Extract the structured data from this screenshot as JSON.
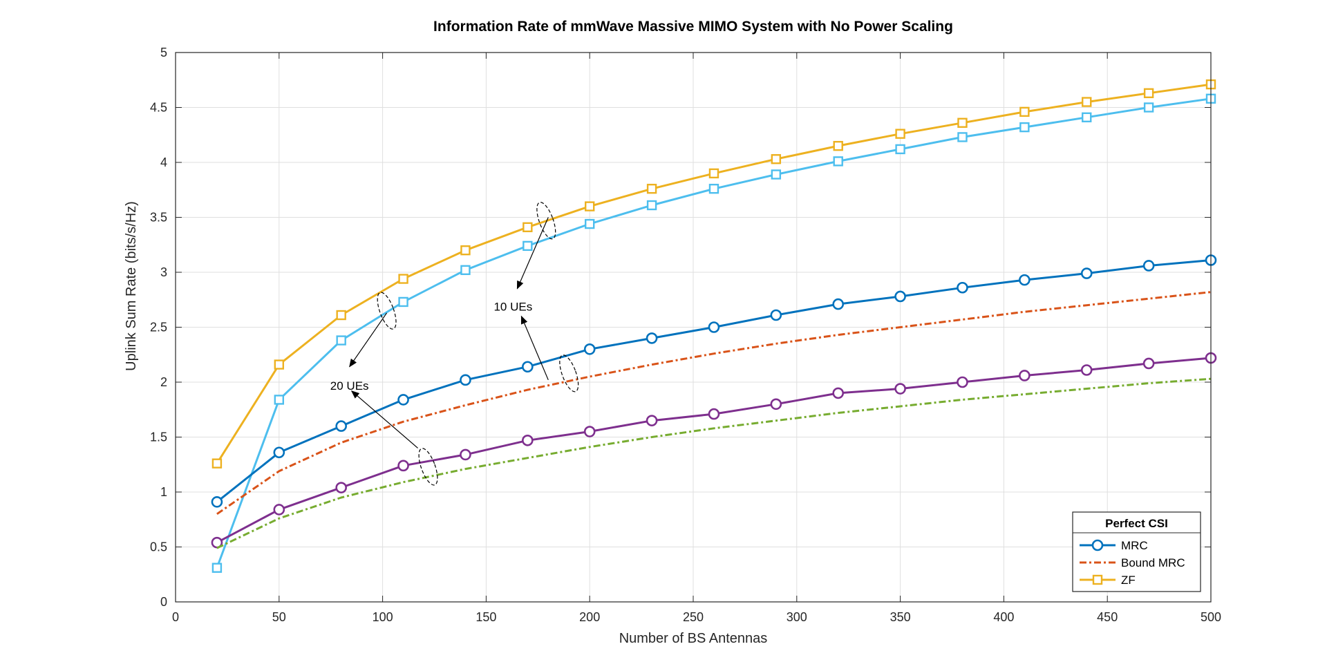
{
  "chart_data": {
    "type": "line",
    "title": "Information Rate of mmWave Massive MIMO System with No Power Scaling",
    "xlabel": "Number of BS Antennas",
    "ylabel": "Uplink Sum Rate (bits/s/Hz)",
    "xlim": [
      0,
      500
    ],
    "ylim": [
      0,
      5
    ],
    "xticks": [
      0,
      50,
      100,
      150,
      200,
      250,
      300,
      350,
      400,
      450,
      500
    ],
    "yticks": [
      0,
      0.5,
      1,
      1.5,
      2,
      2.5,
      3,
      3.5,
      4,
      4.5,
      5
    ],
    "xtick_labels": [
      "0",
      "50",
      "100",
      "150",
      "200",
      "250",
      "300",
      "350",
      "400",
      "450",
      "500"
    ],
    "ytick_labels": [
      "0",
      "0.5",
      "1",
      "1.5",
      "2",
      "2.5",
      "3",
      "3.5",
      "4",
      "4.5",
      "5"
    ],
    "grid": true,
    "x": [
      20,
      50,
      80,
      110,
      140,
      170,
      200,
      230,
      260,
      290,
      320,
      350,
      380,
      410,
      440,
      470,
      500
    ],
    "series": [
      {
        "color": "#EDB120",
        "marker": "square",
        "style": "solid",
        "values": [
          1.26,
          2.16,
          2.61,
          2.94,
          3.2,
          3.41,
          3.6,
          3.76,
          3.9,
          4.03,
          4.15,
          4.26,
          4.36,
          4.46,
          4.55,
          4.63,
          4.71
        ]
      },
      {
        "color": "#4DBEEE",
        "marker": "square",
        "style": "solid",
        "values": [
          0.31,
          1.84,
          2.38,
          2.73,
          3.02,
          3.24,
          3.44,
          3.61,
          3.76,
          3.89,
          4.01,
          4.12,
          4.23,
          4.32,
          4.41,
          4.5,
          4.58
        ]
      },
      {
        "color": "#0072BD",
        "marker": "circle",
        "style": "solid",
        "values": [
          0.91,
          1.36,
          1.6,
          1.84,
          2.02,
          2.14,
          2.3,
          2.4,
          2.5,
          2.61,
          2.71,
          2.78,
          2.86,
          2.93,
          2.99,
          3.06,
          3.11
        ]
      },
      {
        "color": "#D95319",
        "marker": "none",
        "style": "dashdot",
        "values": [
          0.8,
          1.19,
          1.45,
          1.64,
          1.79,
          1.93,
          2.05,
          2.16,
          2.26,
          2.35,
          2.43,
          2.5,
          2.57,
          2.64,
          2.7,
          2.76,
          2.82
        ]
      },
      {
        "color": "#7E2F8E",
        "marker": "circle",
        "style": "solid",
        "values": [
          0.54,
          0.84,
          1.04,
          1.24,
          1.34,
          1.47,
          1.55,
          1.65,
          1.71,
          1.8,
          1.9,
          1.94,
          2.0,
          2.06,
          2.11,
          2.17,
          2.22
        ]
      },
      {
        "color": "#77AC30",
        "marker": "none",
        "style": "dashdot",
        "values": [
          0.49,
          0.76,
          0.95,
          1.09,
          1.21,
          1.31,
          1.41,
          1.5,
          1.58,
          1.65,
          1.72,
          1.78,
          1.84,
          1.89,
          1.94,
          1.99,
          2.03
        ]
      }
    ],
    "annotations": [
      {
        "text": "10 UEs",
        "x": 163,
        "y": 2.69,
        "arrow_from": [
          180,
          2.02
        ],
        "arrow_to": [
          167,
          2.6
        ],
        "arrow2_from": [
          180,
          3.5
        ],
        "arrow2_to": [
          165,
          2.85
        ],
        "ellipses": [
          [
            179,
            3.47
          ],
          [
            190,
            2.08
          ]
        ]
      },
      {
        "text": "20 UEs",
        "x": 84,
        "y": 1.97,
        "arrow_from": [
          117,
          1.4
        ],
        "arrow_to": [
          85,
          1.92
        ],
        "arrow2_from": [
          102,
          2.63
        ],
        "arrow2_to": [
          84,
          2.14
        ],
        "ellipses": [
          [
            102,
            2.65
          ],
          [
            122,
            1.23
          ]
        ]
      }
    ],
    "legend": {
      "title": "Perfect CSI",
      "position": "bottom-right",
      "entries": [
        {
          "label": "MRC",
          "color": "#0072BD",
          "marker": "circle",
          "style": "solid"
        },
        {
          "label": "Bound MRC",
          "color": "#D95319",
          "marker": "none",
          "style": "dashdot"
        },
        {
          "label": "ZF",
          "color": "#EDB120",
          "marker": "square",
          "style": "solid"
        }
      ]
    }
  }
}
